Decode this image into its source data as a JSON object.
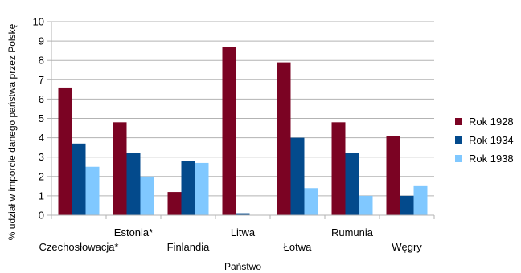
{
  "chart_data": {
    "type": "bar",
    "title": "",
    "xlabel": "Państwo",
    "ylabel": "% udział w imporcie danego państwa przez Polskę",
    "ylim": [
      0,
      10
    ],
    "yticks": [
      0,
      1,
      2,
      3,
      4,
      5,
      6,
      7,
      8,
      9,
      10
    ],
    "grid": "horizontal",
    "legend_position": "right",
    "categories": [
      "Czechosłowacja*",
      "Estonia*",
      "Finlandia",
      "Litwa",
      "Łotwa",
      "Rumunia",
      "Węgry"
    ],
    "series": [
      {
        "name": "Rok 1928",
        "color": "#7b0323",
        "values": [
          6.6,
          4.8,
          1.2,
          8.7,
          7.9,
          4.8,
          4.1
        ]
      },
      {
        "name": "Rok 1934",
        "color": "#034a8c",
        "values": [
          3.7,
          3.2,
          2.8,
          0.1,
          4.0,
          3.2,
          1.0
        ]
      },
      {
        "name": "Rok 1938",
        "color": "#80c8ff",
        "values": [
          2.5,
          2.0,
          2.7,
          0.0,
          1.4,
          1.0,
          1.5
        ]
      }
    ]
  }
}
